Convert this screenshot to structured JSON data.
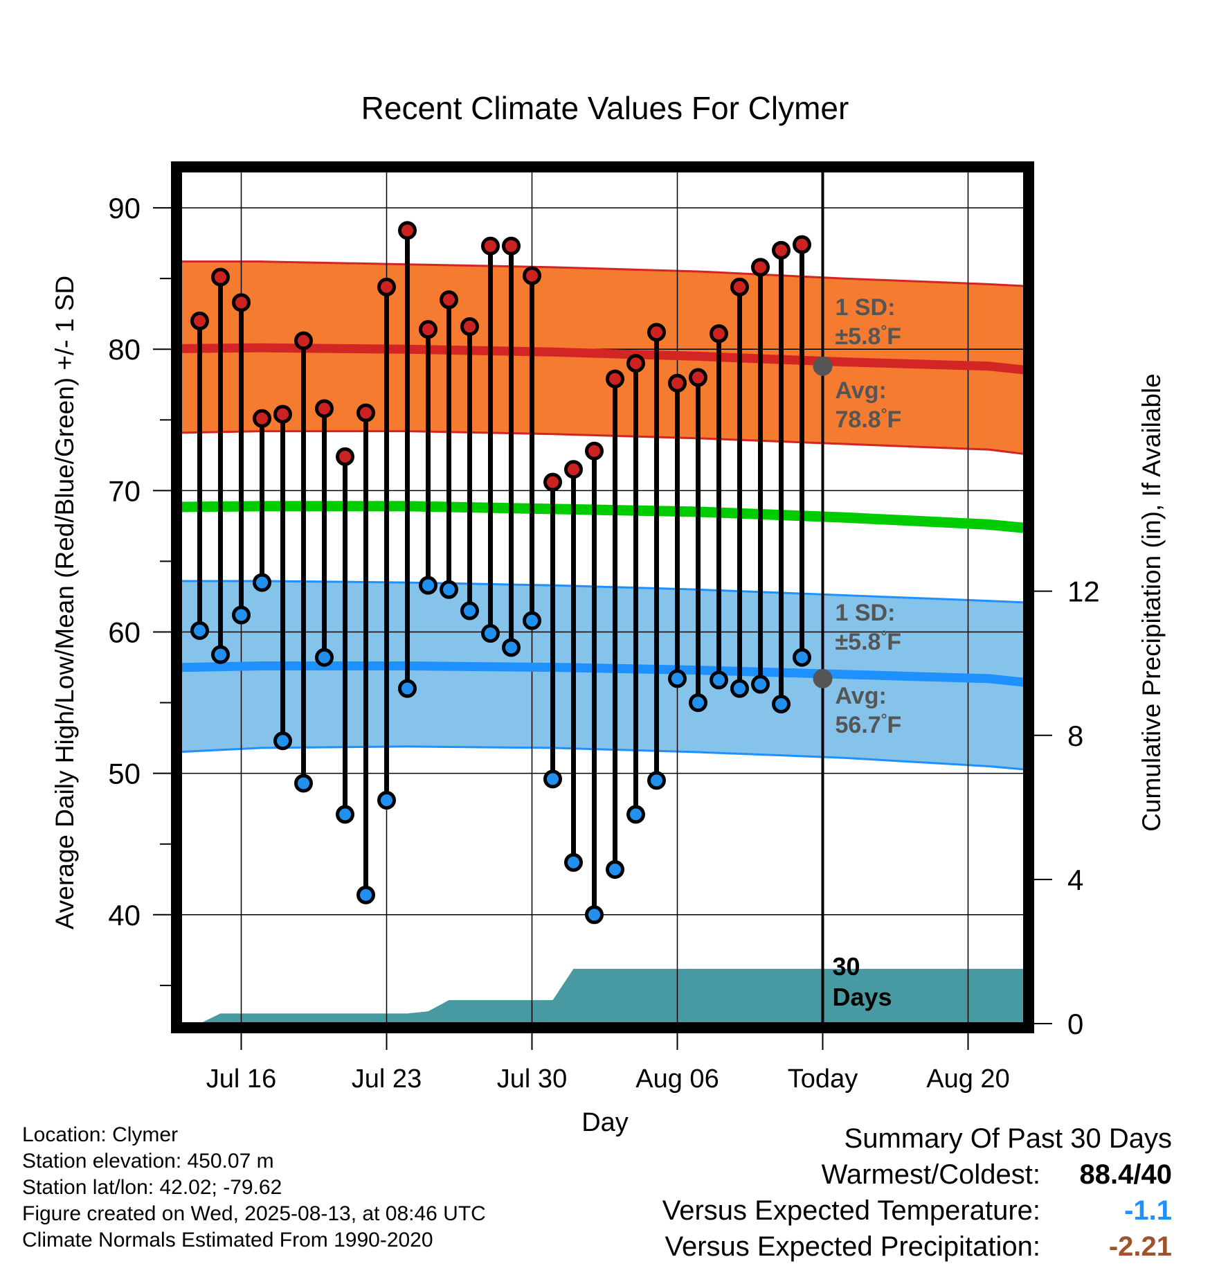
{
  "chart_data": {
    "type": "line",
    "title": "Recent Climate Values For Clymer",
    "xlabel": "Day",
    "ylabel": "Average Daily High/Low/Mean (Red/Blue/Green) +/- 1 SD",
    "y2label": "Cumulative Precipitation (in), If Available",
    "x_tick_labels": [
      "Jul 16",
      "Jul 23",
      "Jul 30",
      "Aug 06",
      "Today",
      "Aug 20"
    ],
    "y_ticks": [
      40,
      50,
      60,
      70,
      80,
      90
    ],
    "y2_ticks": [
      0,
      4,
      8,
      12
    ],
    "ylim": [
      32.3,
      92.6
    ],
    "y2lim": [
      0,
      23.66
    ],
    "x_dates": [
      "Jul 14",
      "Jul 15",
      "Jul 16",
      "Jul 17",
      "Jul 18",
      "Jul 19",
      "Jul 20",
      "Jul 21",
      "Jul 22",
      "Jul 23",
      "Jul 24",
      "Jul 25",
      "Jul 26",
      "Jul 27",
      "Jul 28",
      "Jul 29",
      "Jul 30",
      "Jul 31",
      "Aug 01",
      "Aug 02",
      "Aug 03",
      "Aug 04",
      "Aug 05",
      "Aug 06",
      "Aug 07",
      "Aug 08",
      "Aug 09",
      "Aug 10",
      "Aug 11",
      "Aug 12"
    ],
    "series": [
      {
        "name": "Daily High",
        "values": [
          82.0,
          85.1,
          83.3,
          75.1,
          75.4,
          80.6,
          75.8,
          72.4,
          75.5,
          84.4,
          88.4,
          81.4,
          83.5,
          81.6,
          87.3,
          87.3,
          85.2,
          70.6,
          71.5,
          72.8,
          77.9,
          79.0,
          81.2,
          77.6,
          78.0,
          81.1,
          84.4,
          85.8,
          87.0,
          87.4
        ]
      },
      {
        "name": "Daily Low",
        "values": [
          60.1,
          58.4,
          61.2,
          63.5,
          52.3,
          49.3,
          58.2,
          47.1,
          41.4,
          48.1,
          56.0,
          63.3,
          63.0,
          61.5,
          59.9,
          58.9,
          60.8,
          49.6,
          43.7,
          40.0,
          43.2,
          47.1,
          49.5,
          56.7,
          55.0,
          56.6,
          56.0,
          56.3,
          54.9,
          58.2
        ]
      }
    ],
    "normals": {
      "day_offsets": [
        -4,
        3,
        10,
        17,
        24,
        31,
        38,
        45.8
      ],
      "avg_high": [
        80.0,
        80.1,
        80.0,
        79.8,
        79.5,
        79.1,
        78.8,
        77.6
      ],
      "high_upper": [
        86.2,
        86.2,
        86.0,
        85.8,
        85.5,
        85.0,
        84.6,
        84.0
      ],
      "high_lower": [
        74.0,
        74.2,
        74.2,
        74.0,
        73.7,
        73.3,
        72.9,
        71.5
      ],
      "avg_mean": [
        68.8,
        68.9,
        68.9,
        68.7,
        68.5,
        68.1,
        67.6,
        66.5
      ],
      "avg_low": [
        57.4,
        57.6,
        57.6,
        57.5,
        57.3,
        57.0,
        56.7,
        55.5
      ],
      "low_upper": [
        63.6,
        63.6,
        63.5,
        63.3,
        63.0,
        62.6,
        62.2,
        61.7
      ],
      "low_lower": [
        51.3,
        51.8,
        51.9,
        51.8,
        51.5,
        51.1,
        50.5,
        49.5
      ]
    },
    "precip_cumulative": {
      "day_offsets": [
        0,
        1,
        10,
        11,
        12,
        17,
        18,
        31,
        45.8
      ],
      "values": [
        0,
        0.28,
        0.28,
        0.34,
        0.65,
        0.65,
        1.52,
        1.52,
        1.52
      ]
    },
    "today_marker": {
      "label": "30 Days",
      "high_sd_label": "1 SD:",
      "high_sd_value": "±5.8°F",
      "high_avg_label": "Avg:",
      "high_avg_value": "78.8°F",
      "high_avg": 78.8,
      "low_sd_label": "1 SD:",
      "low_sd_value": "±5.8°F",
      "low_avg_label": "Avg:",
      "low_avg_value": "56.7°F",
      "low_avg": 56.7
    },
    "grid": true,
    "colors": {
      "high_band": "#f47b30",
      "high_line": "#d42525",
      "mean_line": "#00cc00",
      "low_band": "#86c3ea",
      "low_line": "#1e90ff",
      "precip_fill": "#489aa2",
      "high_point": "#cc2222",
      "low_point": "#2290ee",
      "annotation": "#555555"
    }
  },
  "footer": {
    "location": "Location: Clymer",
    "elevation": "Station elevation: 450.07 m",
    "latlon": "Station lat/lon: 42.02; -79.62",
    "created": "Figure created on Wed, 2025-08-13, at 08:46 UTC",
    "normals": "Climate Normals Estimated From 1990-2020"
  },
  "summary": {
    "title": "Summary Of Past 30 Days",
    "warmest_coldest_label": "Warmest/Coldest:",
    "warmest_coldest_value": "88.4/40",
    "temp_label": "Versus Expected Temperature:",
    "temp_value": "-1.1",
    "temp_color": "#1e90ff",
    "precip_label": "Versus Expected Precipitation:",
    "precip_value": "-2.21",
    "precip_color": "#a0522d"
  }
}
